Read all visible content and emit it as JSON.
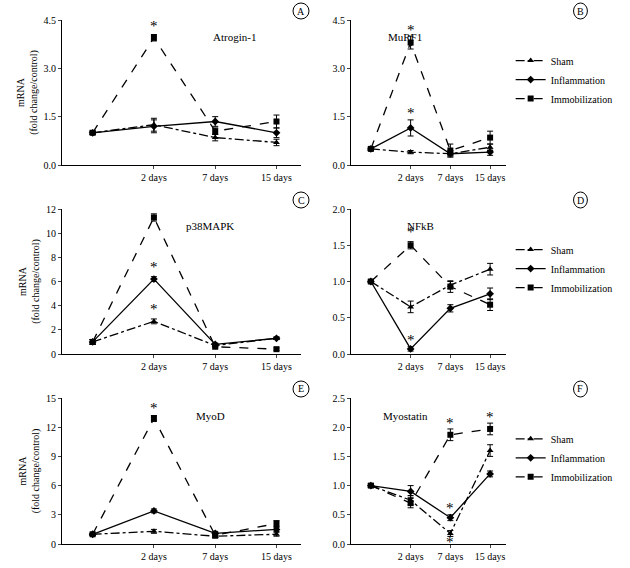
{
  "chart_data": [
    {
      "type": "line",
      "label": "A",
      "title": "Atrogin-1",
      "y_label": "mRNA\n(fold change/control)",
      "categories": [
        null,
        "2 days",
        "7 days",
        "15 days"
      ],
      "ylim": [
        0,
        4.5
      ],
      "yticks": [
        {
          "value": 0,
          "label": "0.0"
        },
        1.5,
        {
          "value": 3,
          "label": "3.0"
        },
        4.5
      ],
      "series": [
        {
          "name": "Sham",
          "color": "#000000",
          "marker": "triangle-up",
          "line_style": "dashdot",
          "values": [
            1.0,
            1.25,
            0.85,
            0.7
          ],
          "errors": [
            0.05,
            0.2,
            0.1,
            0.1
          ]
        },
        {
          "name": "Inflammation",
          "color": "#000000",
          "marker": "diamond",
          "line_style": "solid",
          "values": [
            1.0,
            1.2,
            1.35,
            1.0
          ],
          "errors": [
            0.05,
            0.2,
            0.15,
            0.15
          ]
        },
        {
          "name": "Immobilization",
          "color": "#000000",
          "marker": "square",
          "line_style": "dash",
          "values": [
            1.0,
            3.95,
            1.05,
            1.35
          ],
          "errors": [
            0.05,
            0.1,
            0.1,
            0.2
          ]
        }
      ],
      "annotations": [
        {
          "text": "*",
          "x": "2 days",
          "y": 4.3
        }
      ]
    },
    {
      "type": "line",
      "label": "B",
      "title": "MuRF1",
      "legend": "right",
      "categories": [
        null,
        "2 days",
        "7 days",
        "15 days"
      ],
      "ylim": [
        0,
        4.5
      ],
      "yticks": [
        {
          "value": 0,
          "label": "0.0"
        },
        1.5,
        {
          "value": 3,
          "label": "3.0"
        },
        4.5
      ],
      "series": [
        {
          "name": "Sham",
          "color": "#000000",
          "marker": "triangle-up",
          "line_style": "dashdot",
          "values": [
            0.5,
            0.4,
            0.35,
            0.55
          ],
          "errors": [
            0.05,
            0.05,
            0.05,
            0.1
          ]
        },
        {
          "name": "Inflammation",
          "color": "#000000",
          "marker": "diamond",
          "line_style": "solid",
          "values": [
            0.5,
            1.15,
            0.35,
            0.4
          ],
          "errors": [
            0.05,
            0.25,
            0.1,
            0.1
          ]
        },
        {
          "name": "Immobilization",
          "color": "#000000",
          "marker": "square",
          "line_style": "dash",
          "values": [
            0.5,
            3.8,
            0.45,
            0.85
          ],
          "errors": [
            0.05,
            0.2,
            0.2,
            0.2
          ]
        }
      ],
      "annotations": [
        {
          "text": "*",
          "x": "2 days",
          "y": 4.2
        },
        {
          "text": "*",
          "x": "2 days",
          "y": 1.6
        }
      ]
    },
    {
      "type": "line",
      "label": "C",
      "title": "p38MAPK",
      "y_label": "mRNA\n(fold change/control)",
      "categories": [
        null,
        "2 days",
        "7 days",
        "15 days"
      ],
      "ylim": [
        0,
        12
      ],
      "yticks": [
        0,
        2,
        4,
        6,
        8,
        10,
        12
      ],
      "series": [
        {
          "name": "Sham",
          "color": "#000000",
          "marker": "triangle-up",
          "line_style": "dashdot",
          "values": [
            1.0,
            2.7,
            0.7,
            1.3
          ],
          "errors": [
            0.2,
            0.2,
            0.1,
            0.1
          ]
        },
        {
          "name": "Inflammation",
          "color": "#000000",
          "marker": "diamond",
          "line_style": "solid",
          "values": [
            1.0,
            6.2,
            0.8,
            1.3
          ],
          "errors": [
            0.2,
            0.2,
            0.1,
            0.1
          ]
        },
        {
          "name": "Immobilization",
          "color": "#000000",
          "marker": "square",
          "line_style": "dash",
          "values": [
            1.0,
            11.3,
            0.6,
            0.4
          ],
          "errors": [
            0.2,
            0.3,
            0.1,
            0.1
          ]
        }
      ],
      "annotations": [
        {
          "text": "*",
          "x": "2 days",
          "y": 12.3
        },
        {
          "text": "*",
          "x": "2 days",
          "y": 7.2
        },
        {
          "text": "*",
          "x": "2 days",
          "y": 3.7
        }
      ]
    },
    {
      "type": "line",
      "label": "D",
      "title": "NFkB",
      "legend": "right",
      "categories": [
        null,
        "2 days",
        "7 days",
        "15 days"
      ],
      "ylim": [
        0,
        2.0
      ],
      "yticks": [
        {
          "value": 0,
          "label": "0.0"
        },
        0.5,
        {
          "value": 1,
          "label": "1.0"
        },
        1.5,
        {
          "value": 2,
          "label": "2.0"
        }
      ],
      "series": [
        {
          "name": "Sham",
          "color": "#000000",
          "marker": "triangle-up",
          "line_style": "dashdot",
          "values": [
            1.0,
            0.65,
            0.95,
            1.17
          ],
          "errors": [
            0.02,
            0.08,
            0.05,
            0.08
          ]
        },
        {
          "name": "Inflammation",
          "color": "#000000",
          "marker": "diamond",
          "line_style": "solid",
          "values": [
            1.0,
            0.07,
            0.63,
            0.83
          ],
          "errors": [
            0.02,
            0.03,
            0.05,
            0.08
          ]
        },
        {
          "name": "Immobilization",
          "color": "#000000",
          "marker": "square",
          "line_style": "dash",
          "values": [
            1.0,
            1.5,
            0.93,
            0.68
          ],
          "errors": [
            0.02,
            0.05,
            0.08,
            0.08
          ]
        }
      ],
      "annotations": [
        {
          "text": "*",
          "x": "2 days",
          "y": 1.68
        },
        {
          "text": "*",
          "x": "2 days",
          "y": 0.2
        }
      ]
    },
    {
      "type": "line",
      "label": "E",
      "title": "MyoD",
      "y_label": "mRNA\n(fold change/control)",
      "categories": [
        null,
        "2 days",
        "7 days",
        "15 days"
      ],
      "ylim": [
        0,
        15
      ],
      "yticks": [
        0,
        3,
        6,
        9,
        12,
        15
      ],
      "series": [
        {
          "name": "Sham",
          "color": "#000000",
          "marker": "triangle-up",
          "line_style": "dashdot",
          "values": [
            1.0,
            1.3,
            0.8,
            1.0
          ],
          "errors": [
            0.1,
            0.2,
            0.2,
            0.2
          ]
        },
        {
          "name": "Inflammation",
          "color": "#000000",
          "marker": "diamond",
          "line_style": "solid",
          "values": [
            1.0,
            3.4,
            1.1,
            1.5
          ],
          "errors": [
            0.1,
            0.2,
            0.2,
            0.2
          ]
        },
        {
          "name": "Immobilization",
          "color": "#000000",
          "marker": "square",
          "line_style": "dash",
          "values": [
            1.0,
            12.9,
            0.9,
            2.1
          ],
          "errors": [
            0.1,
            0.3,
            0.2,
            0.3
          ]
        }
      ],
      "annotations": [
        {
          "text": "*",
          "x": "2 days",
          "y": 14.0
        }
      ]
    },
    {
      "type": "line",
      "label": "F",
      "title": "Myostatin",
      "legend": "right",
      "categories": [
        null,
        "2 days",
        "7 days",
        "15 days"
      ],
      "ylim": [
        0,
        2.5
      ],
      "yticks": [
        {
          "value": 0,
          "label": "0.0"
        },
        0.5,
        {
          "value": 1,
          "label": "1.0"
        },
        1.5,
        {
          "value": 2,
          "label": "2.0"
        },
        2.5
      ],
      "series": [
        {
          "name": "Sham",
          "color": "#000000",
          "marker": "triangle-up",
          "line_style": "dashdot",
          "values": [
            1.0,
            0.75,
            0.18,
            1.6
          ],
          "errors": [
            0.03,
            0.08,
            0.05,
            0.1
          ]
        },
        {
          "name": "Inflammation",
          "color": "#000000",
          "marker": "diamond",
          "line_style": "solid",
          "values": [
            1.0,
            0.9,
            0.45,
            1.2
          ],
          "errors": [
            0.03,
            0.1,
            0.05,
            0.05
          ]
        },
        {
          "name": "Immobilization",
          "color": "#000000",
          "marker": "square",
          "line_style": "dash",
          "values": [
            1.0,
            0.7,
            1.87,
            1.97
          ],
          "errors": [
            0.03,
            0.08,
            0.1,
            0.1
          ]
        }
      ],
      "annotations": [
        {
          "text": "*",
          "x": "7 days",
          "y": 2.08
        },
        {
          "text": "*",
          "x": "7 days",
          "y": 0.62
        },
        {
          "text": "*",
          "x": "7 days",
          "y": 0.04
        },
        {
          "text": "*",
          "x": "15 days",
          "y": 2.18
        }
      ]
    }
  ]
}
